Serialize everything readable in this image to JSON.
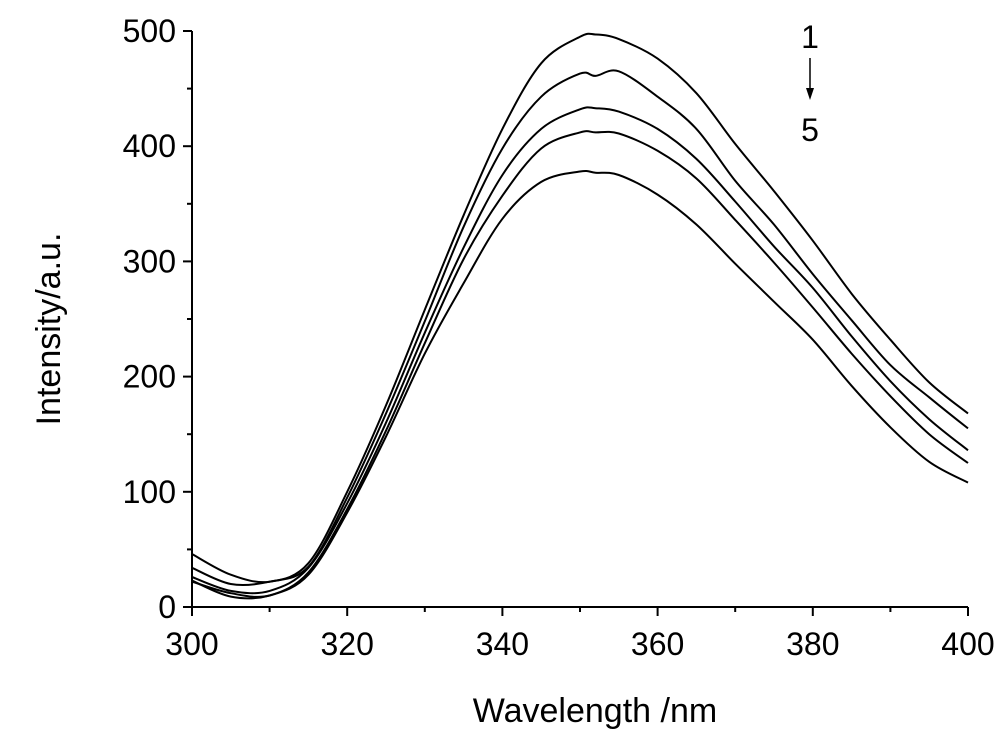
{
  "chart_data": {
    "type": "line",
    "title": "",
    "xlabel": "Wavelength /nm",
    "ylabel": "Intensity/a.u.",
    "xlim": [
      300,
      400
    ],
    "ylim": [
      0,
      500
    ],
    "x_ticks": [
      300,
      320,
      340,
      360,
      380,
      400
    ],
    "y_ticks": [
      0,
      100,
      200,
      300,
      400,
      500
    ],
    "x_tick_labels": [
      "300",
      "320",
      "340",
      "360",
      "380",
      "400"
    ],
    "y_tick_labels": [
      "0",
      "100",
      "200",
      "300",
      "400",
      "500"
    ],
    "grid": false,
    "legend": "none",
    "x": [
      300,
      305,
      310,
      315,
      320,
      325,
      330,
      335,
      340,
      345,
      350,
      352,
      355,
      360,
      365,
      370,
      375,
      380,
      385,
      390,
      395,
      400
    ],
    "series": [
      {
        "values": [
          46,
          28,
          22,
          38,
          100,
          175,
          258,
          340,
          415,
          472,
          495,
          497,
          493,
          476,
          446,
          402,
          361,
          318,
          272,
          232,
          195,
          168
        ]
      },
      {
        "values": [
          34,
          20,
          22,
          35,
          95,
          168,
          248,
          330,
          398,
          443,
          463,
          461,
          465,
          443,
          415,
          370,
          332,
          289,
          249,
          210,
          182,
          155
        ]
      },
      {
        "values": [
          26,
          14,
          14,
          34,
          90,
          160,
          238,
          312,
          375,
          415,
          432,
          433,
          430,
          415,
          389,
          352,
          313,
          277,
          235,
          196,
          163,
          136
        ]
      },
      {
        "values": [
          22,
          12,
          10,
          30,
          85,
          153,
          229,
          302,
          357,
          398,
          412,
          412,
          411,
          396,
          372,
          336,
          299,
          260,
          220,
          183,
          150,
          125
        ]
      },
      {
        "values": [
          23,
          9,
          10,
          28,
          82,
          148,
          220,
          281,
          337,
          369,
          378,
          377,
          375,
          358,
          332,
          298,
          265,
          232,
          192,
          156,
          126,
          108
        ]
      }
    ],
    "annotations": {
      "first": "1",
      "last": "5"
    }
  }
}
